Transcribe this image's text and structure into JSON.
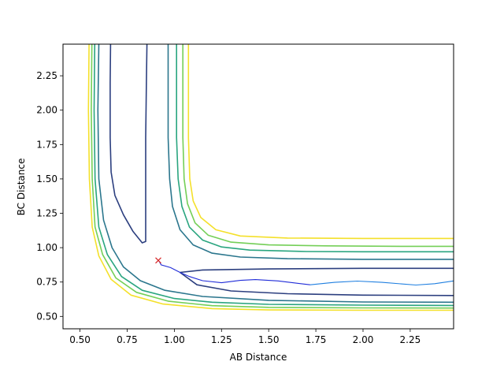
{
  "chart_data": {
    "type": "contour",
    "title": "",
    "xlabel": "AB Distance",
    "ylabel": "BC Distance",
    "xlim": [
      0.41,
      2.48
    ],
    "ylim": [
      0.41,
      2.48
    ],
    "xticks": [
      0.5,
      0.75,
      1.0,
      1.25,
      1.5,
      1.75,
      2.0,
      2.25
    ],
    "xtick_labels": [
      "0.50",
      "0.75",
      "1.00",
      "1.25",
      "1.50",
      "1.75",
      "2.00",
      "2.25"
    ],
    "yticks": [
      0.5,
      0.75,
      1.0,
      1.25,
      1.5,
      1.75,
      2.0,
      2.25
    ],
    "ytick_labels": [
      "0.50",
      "0.75",
      "1.00",
      "1.25",
      "1.50",
      "1.75",
      "2.00",
      "2.25"
    ],
    "grid": false,
    "legend": "none",
    "contours": [
      {
        "color": "#2c3f7f",
        "points": [
          [
            0.662,
            2.48
          ],
          [
            0.66,
            2.2
          ],
          [
            0.66,
            1.8
          ],
          [
            0.665,
            1.55
          ],
          [
            0.685,
            1.38
          ],
          [
            0.73,
            1.24
          ],
          [
            0.78,
            1.12
          ],
          [
            0.83,
            1.035
          ],
          [
            0.848,
            1.045
          ],
          [
            0.848,
            1.3
          ],
          [
            0.848,
            1.8
          ],
          [
            0.852,
            2.2
          ],
          [
            0.855,
            2.48
          ]
        ]
      },
      {
        "color": "#2c3f7f",
        "points": [
          [
            1.03,
            0.82
          ],
          [
            1.15,
            0.838
          ],
          [
            1.5,
            0.845
          ],
          [
            2.0,
            0.85
          ],
          [
            2.48,
            0.85
          ]
        ]
      },
      {
        "color": "#2c3f7f",
        "points": [
          [
            1.03,
            0.82
          ],
          [
            1.12,
            0.73
          ],
          [
            1.3,
            0.685
          ],
          [
            1.6,
            0.665
          ],
          [
            2.0,
            0.655
          ],
          [
            2.48,
            0.652
          ]
        ]
      },
      {
        "color": "#2b768d",
        "points": [
          [
            0.6,
            2.48
          ],
          [
            0.595,
            2.0
          ],
          [
            0.6,
            1.5
          ],
          [
            0.625,
            1.2
          ],
          [
            0.67,
            1.0
          ],
          [
            0.73,
            0.86
          ],
          [
            0.82,
            0.76
          ],
          [
            0.95,
            0.69
          ],
          [
            1.15,
            0.645
          ],
          [
            1.5,
            0.617
          ],
          [
            2.0,
            0.605
          ],
          [
            2.48,
            0.603
          ]
        ]
      },
      {
        "color": "#2b768d",
        "points": [
          [
            0.967,
            2.48
          ],
          [
            0.967,
            1.8
          ],
          [
            0.975,
            1.5
          ],
          [
            0.99,
            1.3
          ],
          [
            1.03,
            1.13
          ],
          [
            1.1,
            1.02
          ],
          [
            1.2,
            0.96
          ],
          [
            1.35,
            0.932
          ],
          [
            1.6,
            0.92
          ],
          [
            2.0,
            0.915
          ],
          [
            2.48,
            0.915
          ]
        ]
      },
      {
        "color": "#2aa57f",
        "points": [
          [
            0.578,
            2.48
          ],
          [
            0.575,
            2.0
          ],
          [
            0.58,
            1.5
          ],
          [
            0.6,
            1.15
          ],
          [
            0.645,
            0.95
          ],
          [
            0.72,
            0.79
          ],
          [
            0.83,
            0.69
          ],
          [
            1.0,
            0.63
          ],
          [
            1.2,
            0.603
          ],
          [
            1.5,
            0.588
          ],
          [
            2.0,
            0.582
          ],
          [
            2.48,
            0.58
          ]
        ]
      },
      {
        "color": "#2aa57f",
        "points": [
          [
            1.012,
            2.48
          ],
          [
            1.012,
            1.8
          ],
          [
            1.02,
            1.5
          ],
          [
            1.04,
            1.3
          ],
          [
            1.08,
            1.15
          ],
          [
            1.15,
            1.055
          ],
          [
            1.25,
            1.005
          ],
          [
            1.4,
            0.982
          ],
          [
            1.7,
            0.972
          ],
          [
            2.0,
            0.97
          ],
          [
            2.48,
            0.97
          ]
        ]
      },
      {
        "color": "#74cf57",
        "points": [
          [
            0.563,
            2.48
          ],
          [
            0.56,
            2.0
          ],
          [
            0.565,
            1.5
          ],
          [
            0.58,
            1.15
          ],
          [
            0.62,
            0.95
          ],
          [
            0.69,
            0.78
          ],
          [
            0.8,
            0.675
          ],
          [
            0.97,
            0.61
          ],
          [
            1.2,
            0.578
          ],
          [
            1.5,
            0.566
          ],
          [
            2.0,
            0.562
          ],
          [
            2.48,
            0.561
          ]
        ]
      },
      {
        "color": "#74cf57",
        "points": [
          [
            1.045,
            2.48
          ],
          [
            1.045,
            1.8
          ],
          [
            1.052,
            1.5
          ],
          [
            1.07,
            1.32
          ],
          [
            1.11,
            1.18
          ],
          [
            1.18,
            1.09
          ],
          [
            1.3,
            1.04
          ],
          [
            1.5,
            1.02
          ],
          [
            1.8,
            1.013
          ],
          [
            2.2,
            1.01
          ],
          [
            2.48,
            1.01
          ]
        ]
      },
      {
        "color": "#f4e02a",
        "points": [
          [
            0.548,
            2.48
          ],
          [
            0.545,
            2.0
          ],
          [
            0.55,
            1.5
          ],
          [
            0.565,
            1.15
          ],
          [
            0.6,
            0.94
          ],
          [
            0.665,
            0.77
          ],
          [
            0.77,
            0.655
          ],
          [
            0.94,
            0.59
          ],
          [
            1.2,
            0.557
          ],
          [
            1.5,
            0.547
          ],
          [
            2.0,
            0.545
          ],
          [
            2.48,
            0.545
          ]
        ]
      },
      {
        "color": "#f4e02a",
        "points": [
          [
            1.075,
            2.48
          ],
          [
            1.075,
            1.8
          ],
          [
            1.082,
            1.5
          ],
          [
            1.1,
            1.34
          ],
          [
            1.14,
            1.22
          ],
          [
            1.22,
            1.13
          ],
          [
            1.35,
            1.085
          ],
          [
            1.6,
            1.07
          ],
          [
            2.0,
            1.067
          ],
          [
            2.48,
            1.067
          ]
        ]
      }
    ],
    "trajectory": {
      "color": "#1f2bd8",
      "color_end": "#1f7fe0",
      "points": [
        [
          0.92,
          0.9
        ],
        [
          0.93,
          0.875
        ],
        [
          0.98,
          0.855
        ],
        [
          1.03,
          0.82
        ],
        [
          1.08,
          0.79
        ],
        [
          1.15,
          0.76
        ],
        [
          1.25,
          0.745
        ],
        [
          1.35,
          0.762
        ],
        [
          1.43,
          0.768
        ],
        [
          1.55,
          0.758
        ],
        [
          1.72,
          0.73
        ],
        [
          1.85,
          0.748
        ],
        [
          1.97,
          0.757
        ],
        [
          2.1,
          0.748
        ],
        [
          2.28,
          0.728
        ],
        [
          2.38,
          0.738
        ],
        [
          2.48,
          0.758
        ]
      ]
    },
    "marker": {
      "x": 0.915,
      "y": 0.907,
      "symbol": "x",
      "color": "#d62728"
    }
  }
}
